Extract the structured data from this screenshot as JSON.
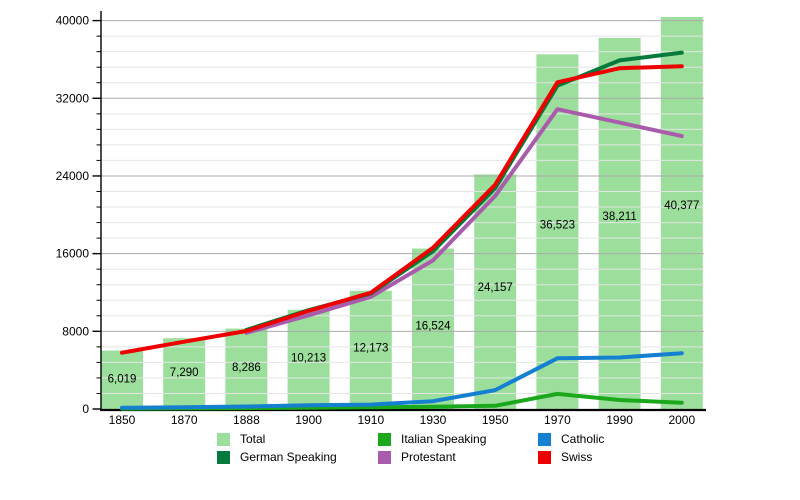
{
  "chart_data": {
    "type": "bar+line",
    "title": "",
    "categories": [
      "1850",
      "1870",
      "1888",
      "1900",
      "1910",
      "1930",
      "1950",
      "1970",
      "1990",
      "2000"
    ],
    "bars": {
      "name": "Total",
      "color": "#9CDF9C",
      "values": [
        6019,
        7290,
        8286,
        10213,
        12173,
        16524,
        24157,
        36523,
        38211,
        40377
      ],
      "labels": [
        "6,019",
        "7,290",
        "8,286",
        "10,213",
        "12,173",
        "16,524",
        "24,157",
        "36,523",
        "38,211",
        "40,377"
      ]
    },
    "lines": [
      {
        "name": "Italian Speaking",
        "color": "#1CA81C",
        "values": [
          40,
          60,
          90,
          130,
          180,
          230,
          330,
          1550,
          930,
          650
        ]
      },
      {
        "name": "Catholic",
        "color": "#1580D0",
        "values": [
          120,
          180,
          260,
          380,
          450,
          800,
          1950,
          5220,
          5300,
          5750
        ]
      },
      {
        "name": "Protestant",
        "color": "#AA5CAC",
        "values": [
          null,
          null,
          7850,
          9650,
          11550,
          15300,
          21950,
          30880,
          29500,
          28100
        ]
      },
      {
        "name": "German Speaking",
        "color": "#067A3A",
        "values": [
          null,
          null,
          8150,
          10180,
          11900,
          16250,
          22750,
          33300,
          35900,
          36700
        ]
      },
      {
        "name": "Swiss",
        "color": "#EE0000",
        "values": [
          5800,
          6930,
          8030,
          10100,
          11975,
          16600,
          23100,
          33650,
          35100,
          35300
        ]
      }
    ],
    "y_axis": {
      "max": 40000,
      "major_step": 8000,
      "minor_step": 1600,
      "ticks": [
        0,
        8000,
        16000,
        24000,
        32000,
        40000
      ],
      "tick_labels": [
        "0",
        "8000",
        "16000",
        "24000",
        "32000",
        "40000"
      ]
    },
    "grid": {
      "minor_color": "#E4E4E4",
      "major_color": "#ABABAB"
    },
    "legend_position": "bottom",
    "legend": [
      {
        "label": "Total",
        "color": "#9CDF9C"
      },
      {
        "label": "German Speaking",
        "color": "#067A3A"
      },
      {
        "label": "Italian Speaking",
        "color": "#1CA81C"
      },
      {
        "label": "Protestant",
        "color": "#AA5CAC"
      },
      {
        "label": "Catholic",
        "color": "#1580D0"
      },
      {
        "label": "Swiss",
        "color": "#EE0000"
      }
    ]
  }
}
